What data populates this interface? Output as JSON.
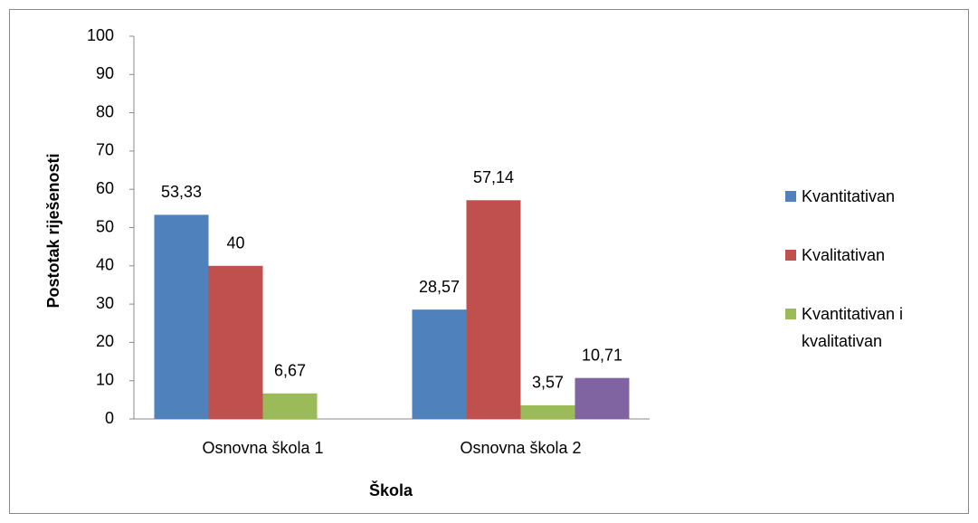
{
  "chart_data": {
    "type": "bar",
    "x_label": "Škola",
    "y_label": "Postotak riješenosti",
    "categories": [
      "Osnovna škola 1",
      "Osnovna škola 2"
    ],
    "series": [
      {
        "name": "Kvantitativan",
        "color": "#4f81bd",
        "values": [
          53.33,
          28.57
        ],
        "value_labels": [
          "53,33",
          "28,57"
        ]
      },
      {
        "name": "Kvalitativan",
        "color": "#c0504d",
        "values": [
          40,
          57.14
        ],
        "value_labels": [
          "40",
          "57,14"
        ]
      },
      {
        "name": "Kvantitativan i kvalitativan",
        "color": "#9bbb59",
        "values": [
          6.67,
          3.57
        ],
        "value_labels": [
          "6,67",
          "3,57"
        ]
      },
      {
        "color": "#8064a2",
        "values": [
          null,
          10.71
        ],
        "value_labels": [
          null,
          "10,71"
        ]
      }
    ],
    "ylim": [
      0,
      100
    ],
    "yticks": [
      0,
      10,
      20,
      30,
      40,
      50,
      60,
      70,
      80,
      90,
      100
    ],
    "grid": false,
    "legend": "right"
  }
}
